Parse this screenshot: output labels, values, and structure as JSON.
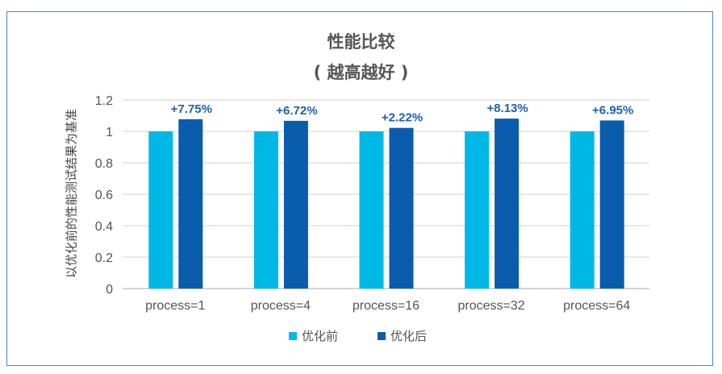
{
  "chart_data": {
    "type": "bar",
    "title": "性能比较",
    "subtitle": "( 越高越好 )",
    "ylabel": "以优化前的性能测试结果为基准",
    "xlabel": "",
    "categories": [
      "process=1",
      "process=4",
      "process=16",
      "process=32",
      "process=64"
    ],
    "series": [
      {
        "name": "优化前",
        "color": "#00b8e6",
        "values": [
          1,
          1,
          1,
          1,
          1
        ]
      },
      {
        "name": "优化后",
        "color": "#0a5cad",
        "values": [
          1.0775,
          1.0672,
          1.0222,
          1.0813,
          1.0695
        ]
      }
    ],
    "data_labels": [
      "+7.75%",
      "+6.72%",
      "+2.22%",
      "+8.13%",
      "+6.95%"
    ],
    "yticks": [
      "0",
      "0.2",
      "0.4",
      "0.6",
      "0.8",
      "1",
      "1.2"
    ],
    "ylim": [
      0,
      1.2
    ],
    "grid": true,
    "legend": "bottom"
  }
}
